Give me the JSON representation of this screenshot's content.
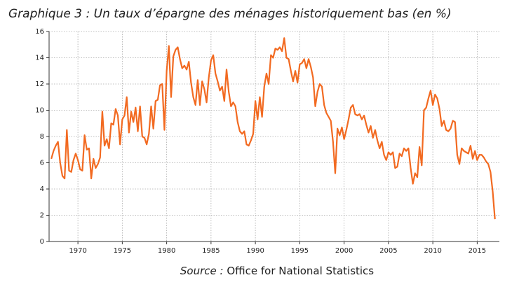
{
  "chart_data": {
    "type": "line",
    "title": "Graphique 3 : Un taux d’épargne des ménages historiquement bas (en %)",
    "source_label": "Source :",
    "source": "Office for National Statistics",
    "x": [
      1967,
      1967.25,
      1967.5,
      1967.75,
      1968,
      1968.25,
      1968.5,
      1968.75,
      1969,
      1969.25,
      1969.5,
      1969.75,
      1970,
      1970.25,
      1970.5,
      1970.75,
      1971,
      1971.25,
      1971.5,
      1971.75,
      1972,
      1972.25,
      1972.5,
      1972.75,
      1973,
      1973.25,
      1973.5,
      1973.75,
      1974,
      1974.25,
      1974.5,
      1974.75,
      1975,
      1975.25,
      1975.5,
      1975.75,
      1976,
      1976.25,
      1976.5,
      1976.75,
      1977,
      1977.25,
      1977.5,
      1977.75,
      1978,
      1978.25,
      1978.5,
      1978.75,
      1979,
      1979.25,
      1979.5,
      1979.75,
      1980,
      1980.25,
      1980.5,
      1980.75,
      1981,
      1981.25,
      1981.5,
      1981.75,
      1982,
      1982.25,
      1982.5,
      1982.75,
      1983,
      1983.25,
      1983.5,
      1983.75,
      1984,
      1984.25,
      1984.5,
      1984.75,
      1985,
      1985.25,
      1985.5,
      1985.75,
      1986,
      1986.25,
      1986.5,
      1986.75,
      1987,
      1987.25,
      1987.5,
      1987.75,
      1988,
      1988.25,
      1988.5,
      1988.75,
      1989,
      1989.25,
      1989.5,
      1989.75,
      1990,
      1990.25,
      1990.5,
      1990.75,
      1991,
      1991.25,
      1991.5,
      1991.75,
      1992,
      1992.25,
      1992.5,
      1992.75,
      1993,
      1993.25,
      1993.5,
      1993.75,
      1994,
      1994.25,
      1994.5,
      1994.75,
      1995,
      1995.25,
      1995.5,
      1995.75,
      1996,
      1996.25,
      1996.5,
      1996.75,
      1997,
      1997.25,
      1997.5,
      1997.75,
      1998,
      1998.25,
      1998.5,
      1998.75,
      1999,
      1999.25,
      1999.5,
      1999.75,
      2000,
      2000.25,
      2000.5,
      2000.75,
      2001,
      2001.25,
      2001.5,
      2001.75,
      2002,
      2002.25,
      2002.5,
      2002.75,
      2003,
      2003.25,
      2003.5,
      2003.75,
      2004,
      2004.25,
      2004.5,
      2004.75,
      2005,
      2005.25,
      2005.5,
      2005.75,
      2006,
      2006.25,
      2006.5,
      2006.75,
      2007,
      2007.25,
      2007.5,
      2007.75,
      2008,
      2008.25,
      2008.5,
      2008.75,
      2009,
      2009.25,
      2009.5,
      2009.75,
      2010,
      2010.25,
      2010.5,
      2010.75,
      2011,
      2011.25,
      2011.5,
      2011.75,
      2012,
      2012.25,
      2012.5,
      2012.75,
      2013,
      2013.25,
      2013.5,
      2013.75,
      2014,
      2014.25,
      2014.5,
      2014.75,
      2015,
      2015.25,
      2015.5,
      2015.75,
      2016,
      2016.25,
      2016.5,
      2016.75,
      2017
    ],
    "series": [
      {
        "name": "Taux d'épargne",
        "color": "#f26a21",
        "values": [
          6.3,
          6.9,
          7.3,
          7.6,
          6.0,
          5.0,
          4.8,
          8.5,
          5.4,
          5.3,
          6.2,
          6.7,
          6.2,
          5.5,
          5.4,
          8.1,
          7.0,
          7.1,
          4.8,
          6.3,
          5.6,
          5.9,
          6.4,
          9.9,
          7.3,
          7.8,
          7.1,
          9.0,
          8.9,
          10.1,
          9.6,
          7.4,
          9.3,
          9.6,
          11.0,
          8.3,
          9.9,
          9.1,
          10.2,
          8.4,
          10.3,
          8.0,
          7.9,
          7.4,
          8.2,
          10.3,
          8.6,
          10.7,
          10.8,
          11.9,
          12.0,
          8.5,
          13.0,
          14.9,
          11.0,
          14.1,
          14.6,
          14.8,
          13.9,
          13.2,
          13.4,
          13.1,
          13.7,
          12.1,
          11.0,
          10.4,
          12.3,
          10.4,
          12.2,
          11.6,
          10.6,
          12.5,
          13.8,
          14.2,
          12.8,
          12.2,
          11.5,
          11.8,
          10.7,
          13.1,
          11.4,
          10.3,
          10.6,
          10.3,
          9.1,
          8.4,
          8.2,
          8.4,
          7.4,
          7.3,
          7.7,
          8.2,
          10.7,
          9.3,
          11.0,
          9.5,
          11.8,
          12.8,
          12.0,
          14.2,
          14.0,
          14.7,
          14.6,
          14.8,
          14.5,
          15.5,
          14.0,
          13.9,
          13.0,
          12.2,
          13.0,
          12.1,
          13.5,
          13.6,
          13.9,
          13.2,
          13.9,
          13.3,
          12.5,
          10.3,
          11.4,
          12.0,
          11.8,
          10.4,
          9.8,
          9.5,
          9.2,
          7.6,
          5.2,
          8.6,
          8.1,
          8.7,
          7.8,
          8.5,
          9.3,
          10.2,
          10.4,
          9.7,
          9.6,
          9.7,
          9.3,
          9.6,
          8.9,
          8.3,
          8.8,
          7.9,
          8.5,
          7.7,
          7.1,
          7.6,
          6.6,
          6.2,
          6.8,
          6.6,
          6.8,
          5.6,
          5.7,
          6.7,
          6.5,
          7.1,
          6.9,
          7.1,
          5.6,
          4.4,
          5.2,
          4.9,
          7.2,
          5.8,
          10.0,
          10.2,
          10.9,
          11.5,
          10.4,
          11.2,
          10.9,
          10.1,
          8.8,
          9.2,
          8.5,
          8.4,
          8.6,
          9.2,
          9.1,
          6.6,
          5.9,
          7.1,
          6.9,
          6.8,
          6.7,
          7.3,
          6.3,
          6.9,
          6.2,
          6.6,
          6.6,
          6.4,
          6.1,
          5.9,
          5.3,
          3.8,
          1.7
        ]
      }
    ],
    "xlim": [
      1966.75,
      2017.5
    ],
    "xticks": [
      1970,
      1975,
      1980,
      1985,
      1990,
      1995,
      2000,
      2005,
      2010,
      2015
    ],
    "ylim": [
      0,
      16
    ],
    "yticks": [
      0,
      2,
      4,
      6,
      8,
      10,
      12,
      14,
      16
    ],
    "grid": true
  }
}
